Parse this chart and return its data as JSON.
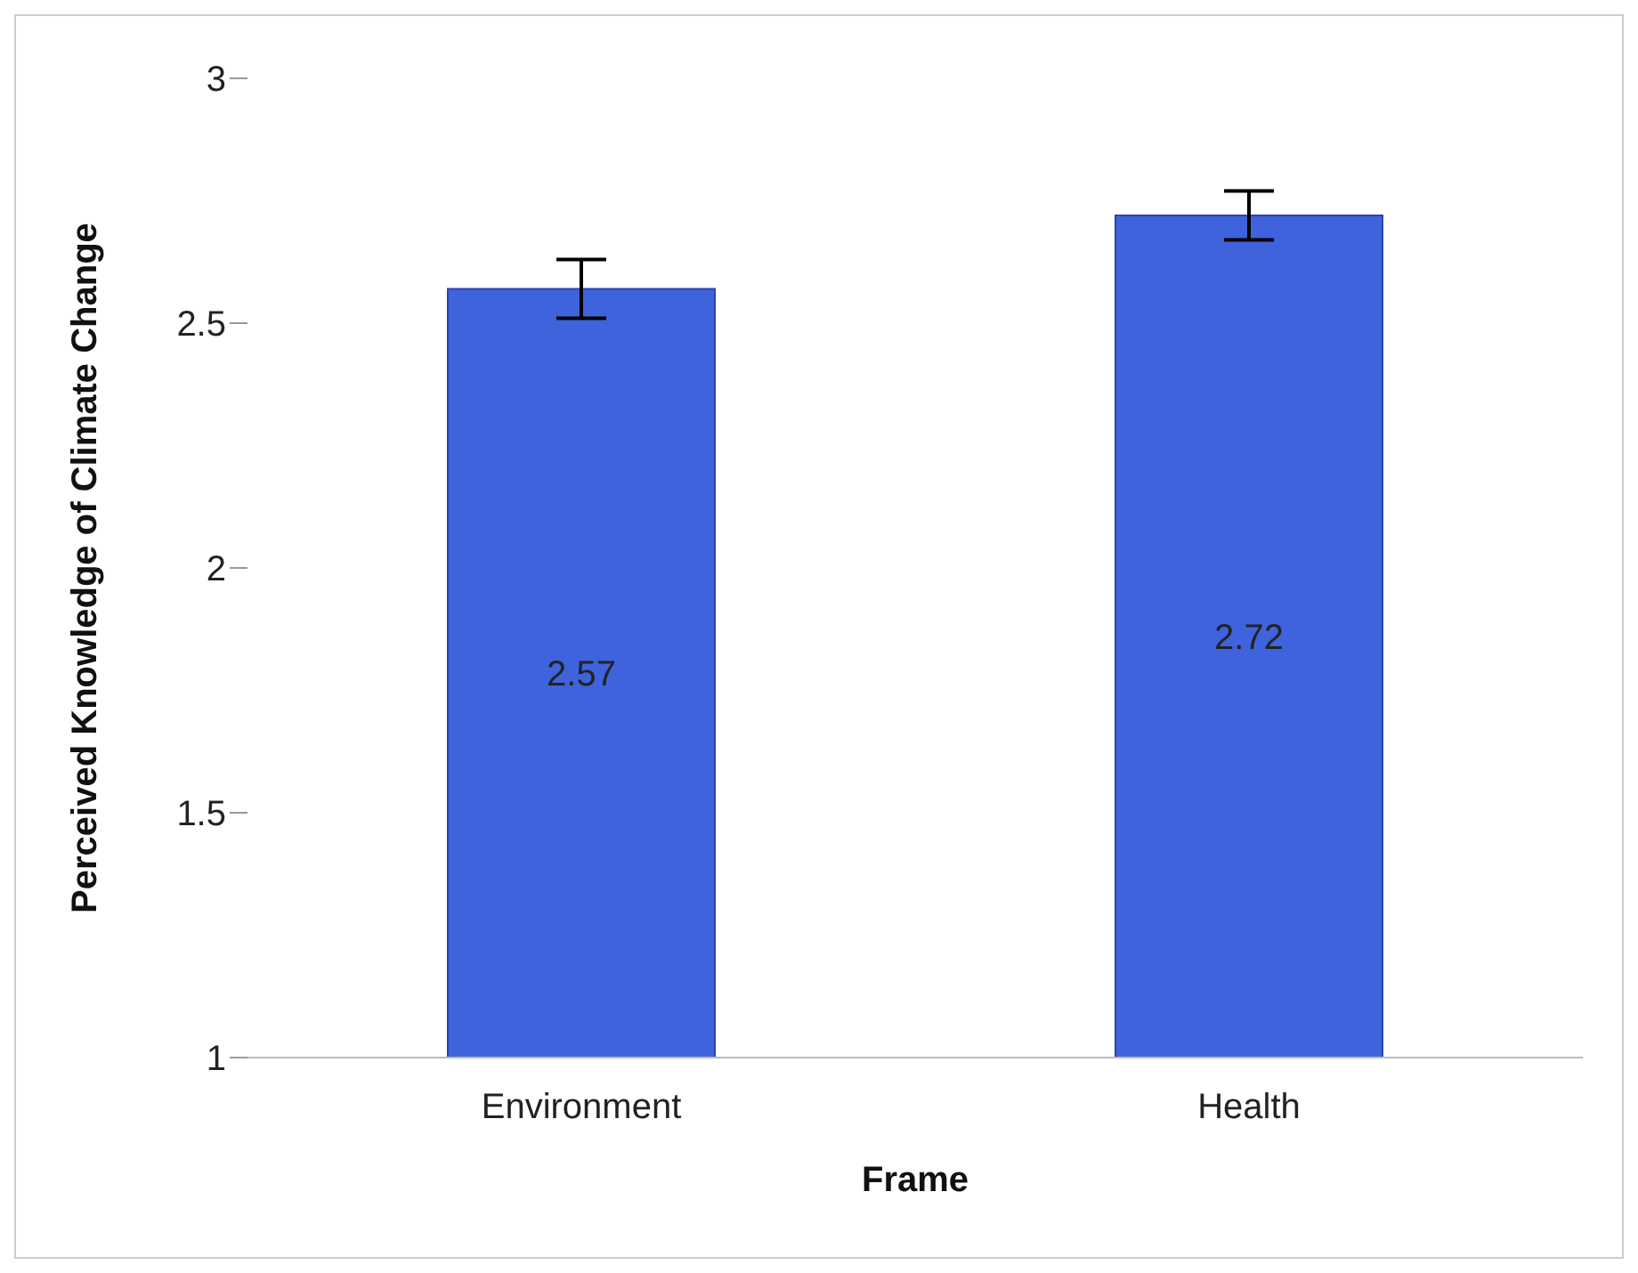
{
  "chart_data": {
    "type": "bar",
    "xlabel": "Frame",
    "ylabel": "Perceived Knowledge of Climate Change",
    "categories": [
      "Environment",
      "Health"
    ],
    "values": [
      2.57,
      2.72
    ],
    "color": "#3f63dc",
    "errors": [
      0.06,
      0.05
    ],
    "ylim": [
      1,
      3
    ],
    "yticks": [
      1,
      1.5,
      2,
      2.5,
      3
    ],
    "grid": false,
    "data_labels": true,
    "legend": false
  }
}
